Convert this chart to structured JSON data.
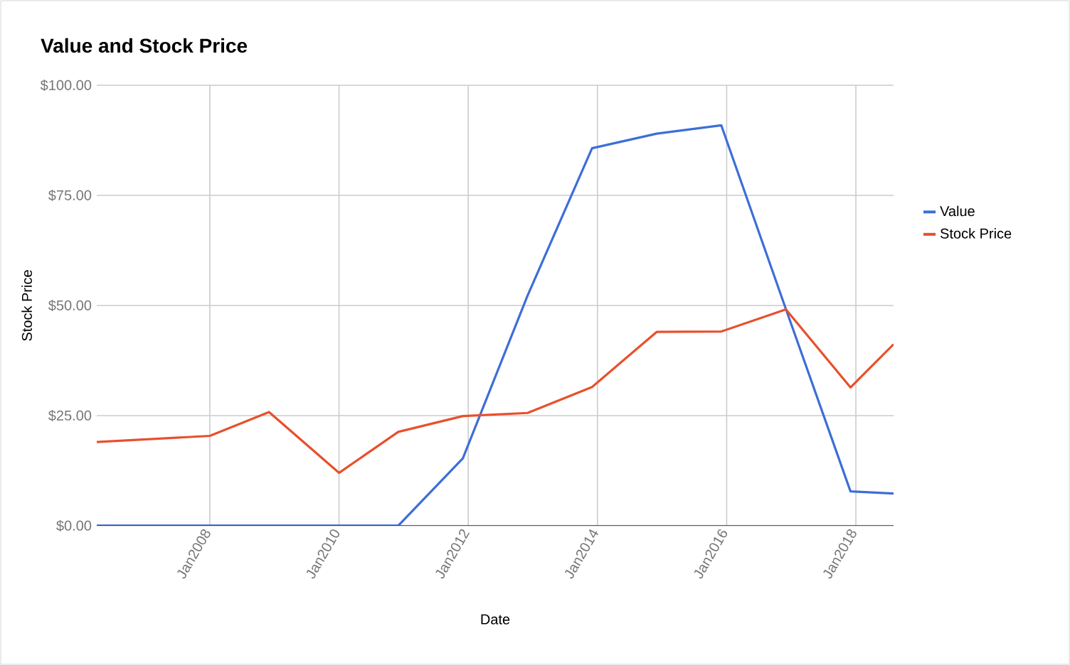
{
  "chart_data": {
    "type": "line",
    "title": "Value and Stock Price",
    "xlabel": "Date",
    "ylabel": "Stock Price",
    "x": [
      "2006-04",
      "2008-01",
      "2008-12",
      "2010-01",
      "2010-12",
      "2011-12",
      "2012-12",
      "2013-12",
      "2014-12",
      "2015-12",
      "2016-12",
      "2017-12",
      "2018-08"
    ],
    "series": [
      {
        "name": "Value",
        "color": "#3d6ed8",
        "values": [
          0,
          0,
          0,
          0,
          0,
          15.3,
          52.2,
          85.7,
          89.0,
          90.9,
          49.2,
          7.8,
          7.3
        ]
      },
      {
        "name": "Stock Price",
        "color": "#e8502c",
        "values": [
          19.0,
          20.4,
          25.8,
          12.0,
          21.3,
          24.9,
          25.6,
          31.5,
          44.0,
          44.1,
          49.1,
          31.4,
          41.2
        ]
      }
    ],
    "xlim": [
      "2006-04",
      "2018-08"
    ],
    "xticks": [
      {
        "value": "2008-01",
        "label": "Jan2008"
      },
      {
        "value": "2010-01",
        "label": "Jan2010"
      },
      {
        "value": "2012-01",
        "label": "Jan2012"
      },
      {
        "value": "2014-01",
        "label": "Jan2014"
      },
      {
        "value": "2016-01",
        "label": "Jan2016"
      },
      {
        "value": "2018-01",
        "label": "Jan2018"
      }
    ],
    "ylim": [
      0,
      100
    ],
    "yticks": [
      {
        "value": 0,
        "label": "$0.00"
      },
      {
        "value": 25,
        "label": "$25.00"
      },
      {
        "value": 50,
        "label": "$50.00"
      },
      {
        "value": 75,
        "label": "$75.00"
      },
      {
        "value": 100,
        "label": "$100.00"
      }
    ],
    "grid": true,
    "legend": "top right",
    "line_style": "solid",
    "marker": "none"
  }
}
